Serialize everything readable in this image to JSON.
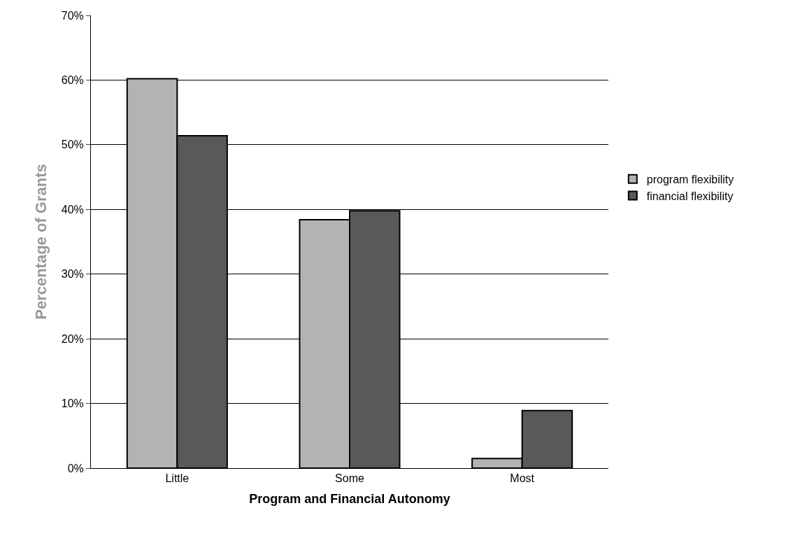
{
  "chart_data": {
    "type": "bar",
    "xlabel": "Program and Financial Autonomy",
    "ylabel": "Percentage of Grants",
    "categories": [
      "Little",
      "Some",
      "Most"
    ],
    "series": [
      {
        "name": "program flexibility",
        "color": "#b2b3b5",
        "values": [
          60.2,
          38.4,
          1.5
        ]
      },
      {
        "name": "financial flexibility",
        "color": "#58595b",
        "values": [
          51.4,
          39.8,
          8.9
        ]
      }
    ],
    "ylim": [
      0,
      70
    ],
    "yticks": [
      {
        "value": 0,
        "label": "0%"
      },
      {
        "value": 10,
        "label": "10%"
      },
      {
        "value": 20,
        "label": "20%"
      },
      {
        "value": 30,
        "label": "30%"
      },
      {
        "value": 40,
        "label": "40%"
      },
      {
        "value": 50,
        "label": "50%"
      },
      {
        "value": 60,
        "label": "60%"
      },
      {
        "value": 70,
        "label": "70%"
      }
    ],
    "grid": "y",
    "legend": "right"
  }
}
